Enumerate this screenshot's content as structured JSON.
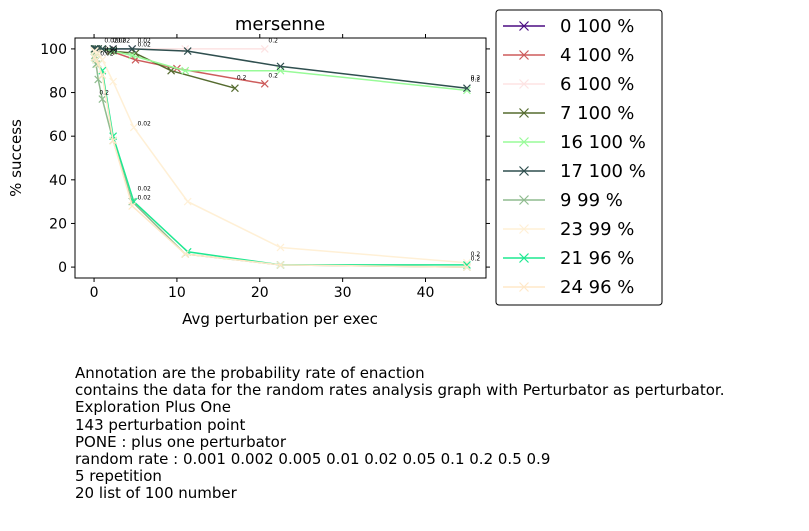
{
  "chart_data": {
    "type": "line",
    "title": "mersenne",
    "xlabel": "Avg perturbation per exec",
    "ylabel": "% success",
    "xlim": [
      -2.3,
      47.3
    ],
    "ylim": [
      -5,
      105
    ],
    "xticks": [
      "0",
      "10",
      "20",
      "30",
      "40"
    ],
    "yticks": [
      "0",
      "20",
      "40",
      "60",
      "80",
      "100"
    ],
    "grid": false,
    "legend": "outside-right",
    "series": [
      {
        "name": "0 100 %",
        "color": "#4b0c82",
        "x": [
          0.05,
          0.1,
          0.25,
          0.5,
          1.0,
          2.3,
          4.6
        ],
        "y": [
          100,
          100,
          100,
          100,
          100,
          100,
          100
        ]
      },
      {
        "name": "4 100 %",
        "color": "#cd5c5c",
        "x": [
          0.05,
          0.1,
          0.25,
          0.5,
          1.0,
          2.0,
          5.0,
          10.0,
          20.6
        ],
        "y": [
          100,
          100,
          100,
          100,
          100,
          99,
          95,
          91,
          84
        ]
      },
      {
        "name": "6 100 %",
        "color": "#fde3e3",
        "x": [
          0.05,
          0.1,
          0.25,
          0.5,
          1.0,
          2.3,
          4.6,
          11.0,
          20.6
        ],
        "y": [
          100,
          100,
          100,
          100,
          100,
          100,
          100,
          100,
          100
        ]
      },
      {
        "name": "7 100 %",
        "color": "#556b2f",
        "x": [
          0.05,
          0.1,
          0.25,
          0.5,
          1.0,
          2.0,
          5.0,
          9.3,
          17.0
        ],
        "y": [
          100,
          100,
          100,
          100,
          100,
          99,
          98,
          90,
          82
        ]
      },
      {
        "name": "16 100 %",
        "color": "#98fb98",
        "x": [
          0.05,
          0.1,
          0.25,
          0.5,
          1.0,
          2.3,
          4.6,
          11.0,
          22.5,
          45.0
        ],
        "y": [
          100,
          100,
          100,
          100,
          100,
          99,
          97,
          90,
          90,
          81
        ]
      },
      {
        "name": "17 100 %",
        "color": "#2f4f4f",
        "x": [
          0.05,
          0.1,
          0.25,
          0.5,
          1.0,
          2.3,
          4.6,
          11.3,
          22.5,
          45.0
        ],
        "y": [
          100,
          100,
          100,
          100,
          100,
          100,
          100,
          99,
          92,
          82
        ]
      },
      {
        "name": "9 99 %",
        "color": "#8fbc8f",
        "x": [
          0.05,
          0.1,
          0.25,
          0.5,
          1.0,
          2.3,
          4.6,
          11.0,
          22.5,
          45.0
        ],
        "y": [
          99,
          97,
          93,
          86,
          77,
          58,
          30,
          6,
          1,
          0
        ]
      },
      {
        "name": "23 99 %",
        "color": "#fff0d6",
        "x": [
          0.05,
          0.1,
          0.25,
          0.5,
          1.0,
          2.3,
          4.8,
          11.3,
          22.5,
          45.0
        ],
        "y": [
          99,
          99,
          98,
          98,
          95,
          85,
          64,
          30,
          9,
          2
        ]
      },
      {
        "name": "21 96 %",
        "color": "#1ee891",
        "x": [
          0.05,
          0.1,
          0.25,
          0.5,
          1.0,
          2.3,
          4.8,
          11.3,
          22.5,
          45.0
        ],
        "y": [
          96,
          96,
          95,
          93,
          90,
          60,
          30,
          7,
          1,
          1
        ]
      },
      {
        "name": "24 96 %",
        "color": "#ffe8c8",
        "x": [
          0.05,
          0.1,
          0.25,
          0.5,
          1.0,
          2.3,
          4.6,
          11.0,
          22.5,
          45.0
        ],
        "y": [
          96,
          96,
          95,
          93,
          88,
          58,
          28,
          6,
          1,
          0
        ]
      }
    ],
    "annotations": [
      {
        "text": "0.2",
        "x": 0.4,
        "y": 79
      },
      {
        "text": "0.02",
        "x": 0.5,
        "y": 97
      },
      {
        "text": "0.02",
        "x": 1.0,
        "y": 98
      },
      {
        "text": "0.02",
        "x": 1.0,
        "y": 99
      },
      {
        "text": "0.02",
        "x": 1.0,
        "y": 103
      },
      {
        "text": "0.02",
        "x": 2.0,
        "y": 103
      },
      {
        "text": "0.02",
        "x": 2.5,
        "y": 103
      },
      {
        "text": "0.02",
        "x": 5.0,
        "y": 101
      },
      {
        "text": "0.02",
        "x": 5.0,
        "y": 103
      },
      {
        "text": "0.02",
        "x": 5.0,
        "y": 65
      },
      {
        "text": "0.02",
        "x": 5.0,
        "y": 35
      },
      {
        "text": "0.02",
        "x": 5.0,
        "y": 31
      },
      {
        "text": "0.2",
        "x": 17.0,
        "y": 86
      },
      {
        "text": "0.2",
        "x": 20.8,
        "y": 87
      },
      {
        "text": "0.2",
        "x": 20.8,
        "y": 103
      },
      {
        "text": "0.2",
        "x": 45.2,
        "y": 86
      },
      {
        "text": "0.2",
        "x": 45.2,
        "y": 85
      },
      {
        "text": "0.2",
        "x": 45.2,
        "y": 5
      },
      {
        "text": "0.2",
        "x": 45.2,
        "y": 3
      }
    ]
  },
  "caption_lines": [
    "Annotation are the probability rate of enaction",
    "contains the data for the random rates analysis graph with Perturbator as perturbator.",
    "Exploration Plus One",
    "143 perturbation point",
    "PONE : plus one perturbator",
    "random rate : 0.001 0.002 0.005 0.01 0.02 0.05 0.1 0.2 0.5 0.9",
    "5 repetition",
    "20 list of 100 number"
  ]
}
